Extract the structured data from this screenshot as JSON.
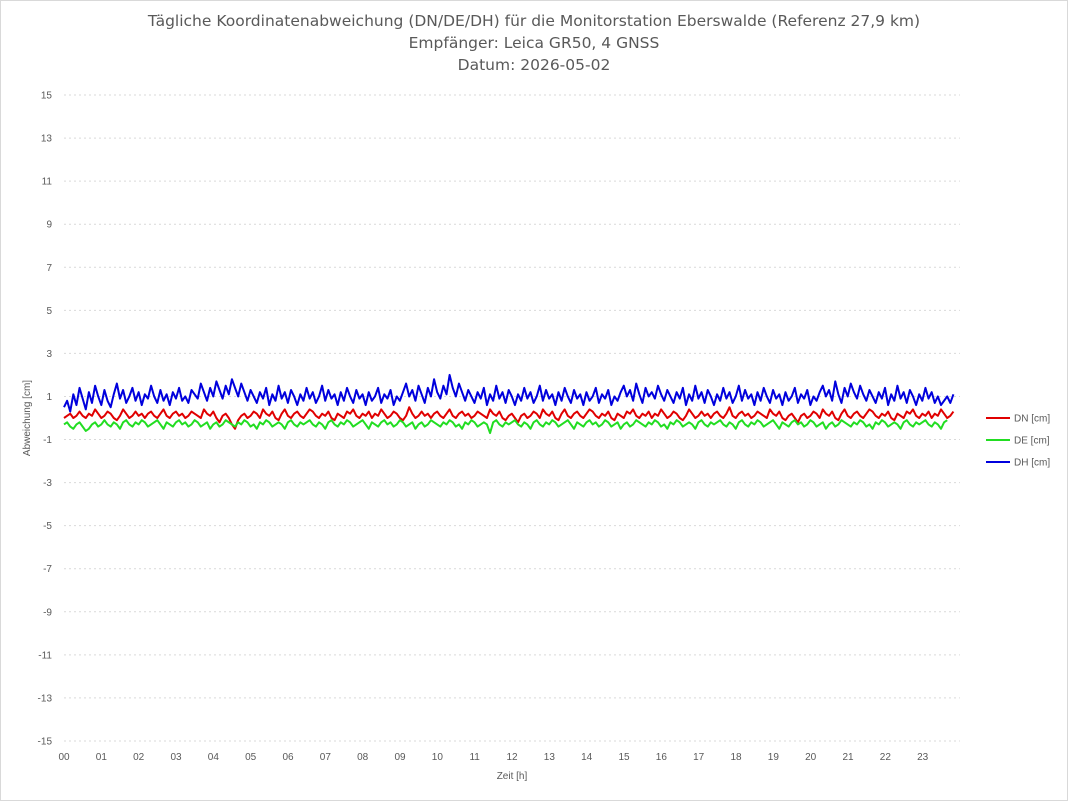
{
  "chart_data": {
    "type": "line",
    "title": "Tägliche Koordinatenabweichung (DN/DE/DH) für die Monitorstation Eberswalde (Referenz 27,9 km)",
    "subtitle": "Empfänger: Leica GR50, 4 GNSS",
    "subtitle2": "Datum: 2026-05-02",
    "xlabel": "Zeit [h]",
    "ylabel": "Abweichung [cm]",
    "xlim": [
      0,
      24
    ],
    "ylim": [
      -15,
      15
    ],
    "x_ticks": [
      "00",
      "01",
      "02",
      "03",
      "04",
      "05",
      "06",
      "07",
      "08",
      "09",
      "10",
      "11",
      "12",
      "13",
      "14",
      "15",
      "16",
      "17",
      "18",
      "19",
      "20",
      "21",
      "22",
      "23"
    ],
    "y_ticks": [
      15,
      13,
      11,
      9,
      7,
      5,
      3,
      1,
      -1,
      -3,
      -5,
      -7,
      -9,
      -11,
      -13,
      -15
    ],
    "grid": "horizontal dotted",
    "legend_position": "right",
    "x_step_hours": 0.0833,
    "series": [
      {
        "name": "DN [cm]",
        "color": "#e00000",
        "values": [
          0.0,
          0.1,
          0.2,
          0.0,
          0.1,
          0.3,
          0.1,
          0.0,
          0.2,
          0.1,
          0.4,
          0.2,
          0.0,
          0.1,
          0.3,
          0.2,
          0.0,
          -0.1,
          0.1,
          0.4,
          0.2,
          0.0,
          0.1,
          0.3,
          0.1,
          0.2,
          0.0,
          0.2,
          0.3,
          0.1,
          0.0,
          0.2,
          0.4,
          0.1,
          0.0,
          0.2,
          0.3,
          0.1,
          0.2,
          0.0,
          0.1,
          0.3,
          0.2,
          0.1,
          0.0,
          0.4,
          0.2,
          0.1,
          0.3,
          0.0,
          -0.2,
          0.1,
          0.2,
          0.0,
          -0.3,
          -0.5,
          -0.1,
          0.1,
          0.2,
          0.0,
          0.1,
          0.3,
          0.2,
          0.0,
          0.4,
          0.2,
          0.1,
          0.3,
          0.0,
          -0.1,
          0.2,
          0.4,
          0.1,
          0.0,
          0.2,
          0.3,
          0.1,
          0.0,
          0.2,
          0.4,
          0.3,
          0.1,
          0.0,
          0.2,
          0.1,
          0.3,
          0.0,
          -0.1,
          0.2,
          0.1,
          0.0,
          0.3,
          0.2,
          0.4,
          0.1,
          0.0,
          0.2,
          0.1,
          0.3,
          0.0,
          0.2,
          0.1,
          0.4,
          0.2,
          0.0,
          0.1,
          0.3,
          0.2,
          0.0,
          -0.1,
          0.1,
          0.5,
          0.2,
          0.0,
          0.1,
          0.3,
          0.1,
          0.2,
          0.0,
          0.2,
          0.3,
          0.1,
          0.0,
          0.2,
          0.4,
          0.1,
          0.0,
          0.2,
          0.3,
          0.1,
          0.2,
          0.0,
          0.1,
          0.3,
          0.2,
          0.1,
          0.0,
          0.4,
          0.2,
          0.1,
          0.3,
          0.0,
          -0.1,
          0.1,
          0.2,
          0.0,
          -0.2,
          0.1,
          0.2,
          0.0,
          0.1,
          0.3,
          0.2,
          0.0,
          0.4,
          0.2,
          0.1,
          0.3,
          0.0,
          -0.1,
          0.2,
          0.4,
          0.1,
          0.0,
          0.2,
          0.3,
          0.1,
          0.0,
          0.2,
          0.4,
          0.3,
          0.1,
          0.0,
          0.2,
          0.1,
          0.3,
          0.0,
          -0.1,
          0.2,
          0.1,
          0.0,
          0.3,
          0.2,
          0.4,
          0.1,
          0.0,
          0.2,
          0.1,
          0.3,
          0.0,
          0.2,
          0.1,
          0.4,
          0.2,
          0.0,
          0.1,
          0.3,
          0.2,
          0.0,
          -0.1,
          0.1,
          0.4,
          0.2,
          0.0,
          0.1,
          0.3,
          0.1,
          0.2,
          0.0,
          0.2,
          0.3,
          0.1,
          0.0,
          0.2,
          0.5,
          0.1,
          0.0,
          0.2,
          0.3,
          0.1,
          0.2,
          0.0,
          0.1,
          0.3,
          0.2,
          0.1,
          0.0,
          0.4,
          0.2,
          0.1,
          0.3,
          0.0,
          -0.1,
          0.1,
          0.2,
          0.0,
          -0.2,
          0.1,
          0.2,
          0.0,
          0.1,
          0.3,
          0.2,
          0.0,
          0.4,
          0.2,
          0.1,
          0.3,
          0.0,
          -0.1,
          0.2,
          0.4,
          0.1,
          0.0,
          0.2,
          0.3,
          0.1,
          0.0,
          0.2,
          0.4,
          0.3,
          0.1,
          0.0,
          0.2,
          0.1,
          0.3,
          0.0,
          -0.1,
          0.2,
          0.1,
          0.0,
          0.3,
          0.2,
          0.4,
          0.1,
          0.0,
          0.2,
          0.1,
          0.3,
          0.0,
          0.2,
          0.1,
          0.4,
          0.2,
          0.0,
          0.1,
          0.3
        ]
      },
      {
        "name": "DE [cm]",
        "color": "#22dd22",
        "values": [
          -0.3,
          -0.2,
          -0.4,
          -0.5,
          -0.3,
          -0.2,
          -0.4,
          -0.6,
          -0.5,
          -0.3,
          -0.2,
          -0.4,
          -0.3,
          -0.1,
          -0.3,
          -0.4,
          -0.2,
          -0.3,
          -0.5,
          -0.2,
          -0.1,
          -0.3,
          -0.4,
          -0.2,
          -0.3,
          -0.1,
          -0.2,
          -0.4,
          -0.3,
          -0.2,
          -0.1,
          -0.3,
          -0.5,
          -0.2,
          -0.3,
          -0.4,
          -0.2,
          -0.1,
          -0.3,
          -0.2,
          -0.4,
          -0.3,
          -0.1,
          -0.2,
          -0.4,
          -0.3,
          -0.2,
          -0.5,
          -0.3,
          -0.2,
          -0.4,
          -0.3,
          -0.1,
          -0.2,
          -0.3,
          -0.4,
          -0.2,
          -0.3,
          -0.1,
          -0.2,
          -0.4,
          -0.3,
          -0.5,
          -0.2,
          -0.3,
          -0.1,
          -0.2,
          -0.4,
          -0.3,
          -0.2,
          -0.3,
          -0.5,
          -0.2,
          -0.1,
          -0.3,
          -0.4,
          -0.2,
          -0.3,
          -0.2,
          -0.1,
          -0.3,
          -0.4,
          -0.2,
          -0.3,
          -0.5,
          -0.2,
          -0.1,
          -0.3,
          -0.4,
          -0.2,
          -0.3,
          -0.1,
          -0.2,
          -0.4,
          -0.3,
          -0.2,
          -0.1,
          -0.3,
          -0.5,
          -0.2,
          -0.3,
          -0.4,
          -0.2,
          -0.1,
          -0.3,
          -0.2,
          -0.4,
          -0.3,
          -0.1,
          -0.2,
          -0.4,
          -0.3,
          -0.2,
          -0.5,
          -0.3,
          -0.2,
          -0.4,
          -0.3,
          -0.1,
          -0.2,
          -0.3,
          -0.4,
          -0.2,
          -0.3,
          -0.1,
          -0.2,
          -0.4,
          -0.3,
          -0.5,
          -0.2,
          -0.3,
          -0.1,
          -0.2,
          -0.4,
          -0.3,
          -0.2,
          -0.3,
          -0.7,
          -0.2,
          -0.1,
          -0.3,
          -0.4,
          -0.2,
          -0.3,
          -0.2,
          -0.1,
          -0.3,
          -0.4,
          -0.2,
          -0.3,
          -0.5,
          -0.2,
          -0.1,
          -0.3,
          -0.4,
          -0.2,
          -0.3,
          -0.1,
          -0.2,
          -0.4,
          -0.3,
          -0.2,
          -0.1,
          -0.3,
          -0.5,
          -0.2,
          -0.3,
          -0.4,
          -0.2,
          -0.1,
          -0.3,
          -0.2,
          -0.4,
          -0.3,
          -0.1,
          -0.2,
          -0.4,
          -0.3,
          -0.2,
          -0.5,
          -0.3,
          -0.2,
          -0.4,
          -0.3,
          -0.1,
          -0.2,
          -0.3,
          -0.4,
          -0.2,
          -0.3,
          -0.1,
          -0.2,
          -0.4,
          -0.3,
          -0.5,
          -0.2,
          -0.3,
          -0.1,
          -0.2,
          -0.4,
          -0.3,
          -0.2,
          -0.3,
          -0.5,
          -0.2,
          -0.1,
          -0.3,
          -0.4,
          -0.2,
          -0.3,
          -0.2,
          -0.1,
          -0.3,
          -0.4,
          -0.2,
          -0.3,
          -0.5,
          -0.2,
          -0.1,
          -0.3,
          -0.4,
          -0.2,
          -0.3,
          -0.1,
          -0.2,
          -0.4,
          -0.3,
          -0.2,
          -0.1,
          -0.3,
          -0.5,
          -0.2,
          -0.3,
          -0.4,
          -0.2,
          -0.1,
          -0.3,
          -0.2,
          -0.4,
          -0.3,
          -0.1,
          -0.2,
          -0.4,
          -0.3,
          -0.2,
          -0.5,
          -0.3,
          -0.2,
          -0.4,
          -0.3,
          -0.1,
          -0.2,
          -0.3,
          -0.4,
          -0.2,
          -0.3,
          -0.1,
          -0.2,
          -0.4,
          -0.3,
          -0.5,
          -0.2,
          -0.3,
          -0.1,
          -0.2,
          -0.4,
          -0.3,
          -0.2,
          -0.3,
          -0.5,
          -0.2,
          -0.1,
          -0.3,
          -0.4,
          -0.2,
          -0.3,
          -0.2,
          -0.1,
          -0.3,
          -0.4,
          -0.2,
          -0.3,
          -0.5,
          -0.2,
          -0.1
        ]
      },
      {
        "name": "DH [cm]",
        "color": "#0000dd",
        "values": [
          0.5,
          0.8,
          0.3,
          1.1,
          0.6,
          1.4,
          0.9,
          0.4,
          1.2,
          0.7,
          1.5,
          1.0,
          0.6,
          1.3,
          0.8,
          0.5,
          1.1,
          1.6,
          0.9,
          1.3,
          0.7,
          1.0,
          1.4,
          0.8,
          1.2,
          0.6,
          1.1,
          0.9,
          1.5,
          1.0,
          0.7,
          1.3,
          0.8,
          1.1,
          0.6,
          1.2,
          0.9,
          1.4,
          0.8,
          1.0,
          0.7,
          1.3,
          1.1,
          0.9,
          1.6,
          1.2,
          0.8,
          1.4,
          1.0,
          1.7,
          1.3,
          0.9,
          1.5,
          1.1,
          1.8,
          1.4,
          1.0,
          1.6,
          1.2,
          0.8,
          1.3,
          1.0,
          0.7,
          1.2,
          0.9,
          1.4,
          0.6,
          1.1,
          0.8,
          1.5,
          0.9,
          1.2,
          0.7,
          1.3,
          1.0,
          0.6,
          1.1,
          0.8,
          1.4,
          0.9,
          1.2,
          0.7,
          1.0,
          1.5,
          0.8,
          1.3,
          0.9,
          1.1,
          0.6,
          1.2,
          0.8,
          1.4,
          1.0,
          0.7,
          1.3,
          0.9,
          1.1,
          0.6,
          1.2,
          0.8,
          1.0,
          1.4,
          0.7,
          1.1,
          0.9,
          1.3,
          0.6,
          1.0,
          0.8,
          1.2,
          1.6,
          1.0,
          1.3,
          0.8,
          1.5,
          1.1,
          0.7,
          1.4,
          1.0,
          1.8,
          1.2,
          0.9,
          1.5,
          1.1,
          2.0,
          1.4,
          1.0,
          1.6,
          1.2,
          0.8,
          1.3,
          1.0,
          0.7,
          1.2,
          0.9,
          1.4,
          0.6,
          1.1,
          0.8,
          1.5,
          0.9,
          1.2,
          0.7,
          1.3,
          1.0,
          0.6,
          1.1,
          0.8,
          1.4,
          0.9,
          1.2,
          0.7,
          1.0,
          1.5,
          0.8,
          1.3,
          0.9,
          1.1,
          0.6,
          1.2,
          0.8,
          1.4,
          1.0,
          0.7,
          1.3,
          0.9,
          1.1,
          0.6,
          1.2,
          0.8,
          1.0,
          1.4,
          0.7,
          1.1,
          0.9,
          1.3,
          0.6,
          1.0,
          0.8,
          1.2,
          1.5,
          1.0,
          1.3,
          0.8,
          1.6,
          1.1,
          0.7,
          1.4,
          1.0,
          1.2,
          0.9,
          1.5,
          1.1,
          0.8,
          1.3,
          1.0,
          0.7,
          1.2,
          0.9,
          1.4,
          0.6,
          1.1,
          0.8,
          1.5,
          0.9,
          1.2,
          0.7,
          1.3,
          1.0,
          0.6,
          1.1,
          0.8,
          1.4,
          0.9,
          1.2,
          0.7,
          1.0,
          1.5,
          0.8,
          1.3,
          0.9,
          1.1,
          0.6,
          1.2,
          0.8,
          1.4,
          1.0,
          0.7,
          1.3,
          0.9,
          1.1,
          0.6,
          1.2,
          0.8,
          1.0,
          1.4,
          0.7,
          1.1,
          0.9,
          1.3,
          0.6,
          1.0,
          0.8,
          1.2,
          1.5,
          1.0,
          1.3,
          0.8,
          1.7,
          1.1,
          0.7,
          1.4,
          1.0,
          1.6,
          1.2,
          0.9,
          1.5,
          1.1,
          0.8,
          1.3,
          1.0,
          0.7,
          1.2,
          0.9,
          1.4,
          0.6,
          1.1,
          0.8,
          1.5,
          0.9,
          1.2,
          0.7,
          1.3,
          1.0,
          0.6,
          1.1,
          0.8,
          1.4,
          0.9,
          1.2,
          0.7,
          1.0,
          0.6,
          0.8,
          1.0,
          0.7,
          1.1
        ]
      }
    ]
  }
}
